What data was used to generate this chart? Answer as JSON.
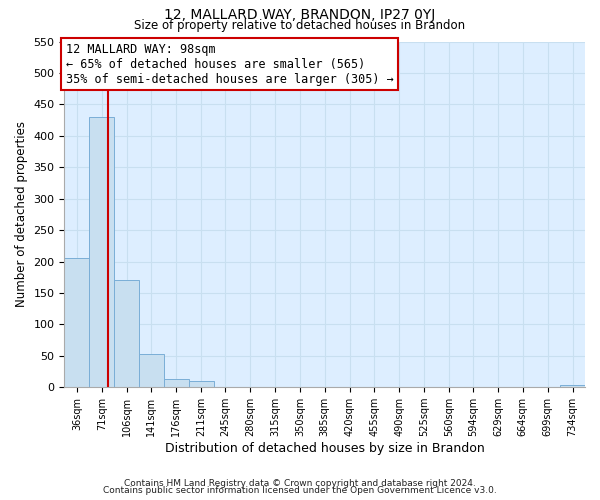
{
  "title": "12, MALLARD WAY, BRANDON, IP27 0YJ",
  "subtitle": "Size of property relative to detached houses in Brandon",
  "xlabel": "Distribution of detached houses by size in Brandon",
  "ylabel": "Number of detached properties",
  "bar_edges": [
    36,
    71,
    106,
    141,
    176,
    211,
    245,
    280,
    315,
    350,
    385,
    420,
    455,
    490,
    525,
    560,
    594,
    629,
    664,
    699,
    734
  ],
  "bar_heights": [
    206,
    430,
    170,
    53,
    13,
    10,
    0,
    0,
    0,
    0,
    0,
    0,
    0,
    0,
    0,
    0,
    0,
    0,
    0,
    0,
    3
  ],
  "bar_color": "#c8dff0",
  "bar_edge_color": "#7aaed6",
  "grid_color": "#c8dff0",
  "background_color": "#ddeeff",
  "vline_x": 98,
  "vline_color": "#cc0000",
  "annotation_title": "12 MALLARD WAY: 98sqm",
  "annotation_line1": "← 65% of detached houses are smaller (565)",
  "annotation_line2": "35% of semi-detached houses are larger (305) →",
  "annotation_box_color": "#ffffff",
  "annotation_box_edge": "#cc0000",
  "ylim": [
    0,
    550
  ],
  "yticks": [
    0,
    50,
    100,
    150,
    200,
    250,
    300,
    350,
    400,
    450,
    500,
    550
  ],
  "footnote1": "Contains HM Land Registry data © Crown copyright and database right 2024.",
  "footnote2": "Contains public sector information licensed under the Open Government Licence v3.0."
}
